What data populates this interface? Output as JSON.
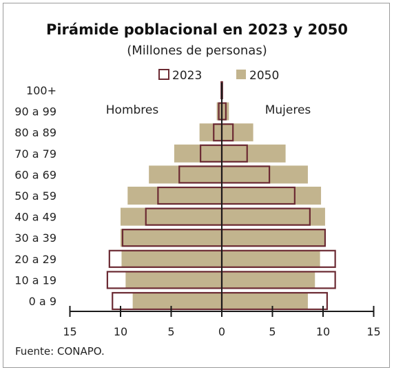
{
  "colors": {
    "bar_2050": "#c2b48e",
    "outline_2023": "#6b2a33",
    "axis": "#1a1a1a",
    "text": "#222222"
  },
  "chart_data": {
    "type": "bar",
    "orientation": "horizontal-pyramid",
    "title": "Pirámide poblacional en 2023 y 2050",
    "subtitle": "(Millones de personas)",
    "source": "Fuente: CONAPO.",
    "side_labels": {
      "left": "Hombres",
      "right": "Mujeres"
    },
    "legend": [
      {
        "name": "2023",
        "style": "outline"
      },
      {
        "name": "2050",
        "style": "filled"
      }
    ],
    "xlim": [
      -15,
      15
    ],
    "xticks": [
      -15,
      -10,
      -5,
      0,
      5,
      10,
      15
    ],
    "xtick_labels": [
      "15",
      "10",
      "5",
      "0",
      "5",
      "10",
      "15"
    ],
    "categories": [
      "0 a 9",
      "10 a 19",
      "20 a 29",
      "30 a 39",
      "40 a 49",
      "50 a 59",
      "60 a 69",
      "70 a 79",
      "80 a 89",
      "90 a 99",
      "100+"
    ],
    "series": [
      {
        "name": "2023",
        "style": "outline",
        "hombres": [
          10.8,
          11.3,
          11.1,
          9.8,
          7.5,
          6.3,
          4.2,
          2.1,
          0.8,
          0.3,
          0.05
        ],
        "mujeres": [
          10.4,
          11.2,
          11.2,
          10.2,
          8.7,
          7.2,
          4.7,
          2.5,
          1.1,
          0.4,
          0.05
        ]
      },
      {
        "name": "2050",
        "style": "filled",
        "hombres": [
          8.8,
          9.5,
          9.9,
          10.0,
          10.0,
          9.3,
          7.2,
          4.7,
          2.2,
          0.5,
          0.05
        ],
        "mujeres": [
          8.5,
          9.2,
          9.7,
          10.2,
          10.2,
          9.8,
          8.5,
          6.3,
          3.1,
          0.7,
          0.1
        ]
      }
    ]
  }
}
